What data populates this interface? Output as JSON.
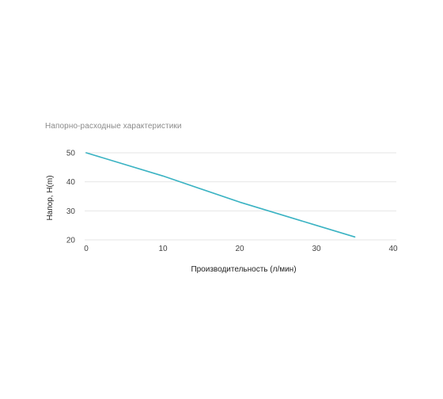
{
  "chart_data": {
    "type": "line",
    "title": "Напорно-расходные характеристики",
    "xlabel": "Производительность (л/мин)",
    "ylabel": "Напор, H(m)",
    "xlim": [
      0,
      40
    ],
    "ylim": [
      20,
      50
    ],
    "xticks": [
      0,
      10,
      20,
      30,
      40
    ],
    "yticks": [
      20,
      30,
      40,
      50
    ],
    "grid": "horizontal",
    "legend": "none",
    "series": [
      {
        "color": "#3bb3c3",
        "x": [
          0,
          10,
          20,
          30,
          35
        ],
        "y": [
          50,
          42,
          33,
          25,
          21
        ]
      }
    ]
  }
}
